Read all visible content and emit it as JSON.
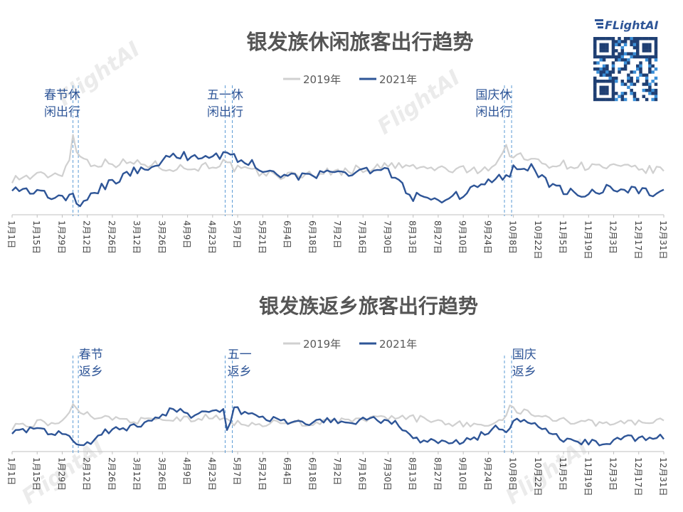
{
  "brand": {
    "name": "FLightAI",
    "watermark": "FlightAI"
  },
  "colors": {
    "s2019": "#d0d0d0",
    "s2021": "#2e5597",
    "holiday_line": "#5b9bd5"
  },
  "x_tick_labels": [
    "1月1日",
    "1月15日",
    "1月29日",
    "2月12日",
    "2月26日",
    "3月12日",
    "3月26日",
    "4月9日",
    "4月23日",
    "5月7日",
    "5月21日",
    "6月4日",
    "6月18日",
    "7月2日",
    "7月16日",
    "7月30日",
    "8月13日",
    "8月27日",
    "9月10日",
    "9月24日",
    "10月8日",
    "10月22日",
    "11月5日",
    "11月19日",
    "12月3日",
    "12月17日",
    "12月31日"
  ],
  "chart_data": [
    {
      "type": "line",
      "title": "银发族休闲旅客出行趋势",
      "legend": [
        "2019年",
        "2021年"
      ],
      "legend_position": "top",
      "x": {
        "start": "1月1日",
        "end": "12月31日",
        "step_days": 14
      },
      "annotations": [
        {
          "text": [
            "春节休",
            "闲出行"
          ],
          "day": 28
        },
        {
          "text": [
            "五一休",
            "闲出行"
          ],
          "day": 119
        },
        {
          "text": [
            "国庆休",
            "闲出行"
          ],
          "day": 269
        }
      ],
      "holiday_lines_days": [
        34,
        37,
        119,
        123,
        275,
        279
      ],
      "series": [
        {
          "name": "2019年",
          "anchors": [
            [
              0,
              0.28
            ],
            [
              14,
              0.3
            ],
            [
              28,
              0.32
            ],
            [
              32,
              0.45
            ],
            [
              34,
              0.6
            ],
            [
              37,
              0.46
            ],
            [
              44,
              0.4
            ],
            [
              58,
              0.4
            ],
            [
              72,
              0.4
            ],
            [
              86,
              0.37
            ],
            [
              100,
              0.36
            ],
            [
              118,
              0.4
            ],
            [
              126,
              0.35
            ],
            [
              140,
              0.32
            ],
            [
              154,
              0.3
            ],
            [
              170,
              0.32
            ],
            [
              186,
              0.34
            ],
            [
              200,
              0.36
            ],
            [
              214,
              0.38
            ],
            [
              228,
              0.36
            ],
            [
              244,
              0.35
            ],
            [
              256,
              0.34
            ],
            [
              270,
              0.38
            ],
            [
              275,
              0.52
            ],
            [
              280,
              0.46
            ],
            [
              296,
              0.4
            ],
            [
              316,
              0.38
            ],
            [
              340,
              0.36
            ],
            [
              364,
              0.34
            ]
          ]
        },
        {
          "name": "2021年",
          "anchors": [
            [
              0,
              0.22
            ],
            [
              14,
              0.18
            ],
            [
              28,
              0.12
            ],
            [
              34,
              0.14
            ],
            [
              39,
              0.06
            ],
            [
              46,
              0.18
            ],
            [
              60,
              0.28
            ],
            [
              72,
              0.36
            ],
            [
              86,
              0.43
            ],
            [
              100,
              0.46
            ],
            [
              112,
              0.45
            ],
            [
              120,
              0.48
            ],
            [
              128,
              0.42
            ],
            [
              140,
              0.36
            ],
            [
              154,
              0.3
            ],
            [
              170,
              0.3
            ],
            [
              186,
              0.33
            ],
            [
              198,
              0.35
            ],
            [
              210,
              0.33
            ],
            [
              216,
              0.25
            ],
            [
              224,
              0.14
            ],
            [
              236,
              0.12
            ],
            [
              250,
              0.15
            ],
            [
              262,
              0.22
            ],
            [
              276,
              0.3
            ],
            [
              282,
              0.38
            ],
            [
              290,
              0.36
            ],
            [
              304,
              0.2
            ],
            [
              318,
              0.15
            ],
            [
              334,
              0.21
            ],
            [
              348,
              0.19
            ],
            [
              364,
              0.16
            ]
          ]
        }
      ]
    },
    {
      "type": "line",
      "title": "银发族返乡旅客出行趋势",
      "legend": [
        "2019年",
        "2021年"
      ],
      "legend_position": "top",
      "x": {
        "start": "1月1日",
        "end": "12月31日",
        "step_days": 14
      },
      "annotations": [
        {
          "text": [
            "春节",
            "返乡"
          ],
          "day": 44
        },
        {
          "text": [
            "五一",
            "返乡"
          ],
          "day": 127
        },
        {
          "text": [
            "国庆",
            "返乡"
          ],
          "day": 286
        }
      ],
      "holiday_lines_days": [
        34,
        37,
        119,
        123,
        275,
        279
      ],
      "series": [
        {
          "name": "2019年",
          "anchors": [
            [
              0,
              0.26
            ],
            [
              14,
              0.3
            ],
            [
              28,
              0.3
            ],
            [
              33,
              0.4
            ],
            [
              35,
              0.52
            ],
            [
              38,
              0.4
            ],
            [
              48,
              0.36
            ],
            [
              60,
              0.34
            ],
            [
              72,
              0.32
            ],
            [
              86,
              0.33
            ],
            [
              100,
              0.34
            ],
            [
              112,
              0.36
            ],
            [
              124,
              0.3
            ],
            [
              140,
              0.29
            ],
            [
              154,
              0.3
            ],
            [
              170,
              0.3
            ],
            [
              186,
              0.32
            ],
            [
              200,
              0.34
            ],
            [
              214,
              0.36
            ],
            [
              228,
              0.34
            ],
            [
              244,
              0.3
            ],
            [
              260,
              0.28
            ],
            [
              274,
              0.3
            ],
            [
              278,
              0.5
            ],
            [
              282,
              0.42
            ],
            [
              296,
              0.38
            ],
            [
              314,
              0.3
            ],
            [
              340,
              0.3
            ],
            [
              364,
              0.32
            ]
          ]
        },
        {
          "name": "2021年",
          "anchors": [
            [
              0,
              0.22
            ],
            [
              14,
              0.23
            ],
            [
              28,
              0.18
            ],
            [
              34,
              0.14
            ],
            [
              40,
              0.04
            ],
            [
              48,
              0.18
            ],
            [
              60,
              0.24
            ],
            [
              72,
              0.28
            ],
            [
              84,
              0.36
            ],
            [
              90,
              0.46
            ],
            [
              100,
              0.38
            ],
            [
              112,
              0.42
            ],
            [
              118,
              0.44
            ],
            [
              120,
              0.22
            ],
            [
              124,
              0.44
            ],
            [
              134,
              0.38
            ],
            [
              148,
              0.33
            ],
            [
              162,
              0.3
            ],
            [
              176,
              0.32
            ],
            [
              190,
              0.31
            ],
            [
              200,
              0.33
            ],
            [
              214,
              0.31
            ],
            [
              220,
              0.2
            ],
            [
              230,
              0.1
            ],
            [
              244,
              0.09
            ],
            [
              258,
              0.13
            ],
            [
              270,
              0.26
            ],
            [
              276,
              0.18
            ],
            [
              280,
              0.34
            ],
            [
              290,
              0.28
            ],
            [
              302,
              0.18
            ],
            [
              314,
              0.09
            ],
            [
              330,
              0.1
            ],
            [
              346,
              0.14
            ],
            [
              364,
              0.16
            ]
          ]
        }
      ]
    }
  ]
}
